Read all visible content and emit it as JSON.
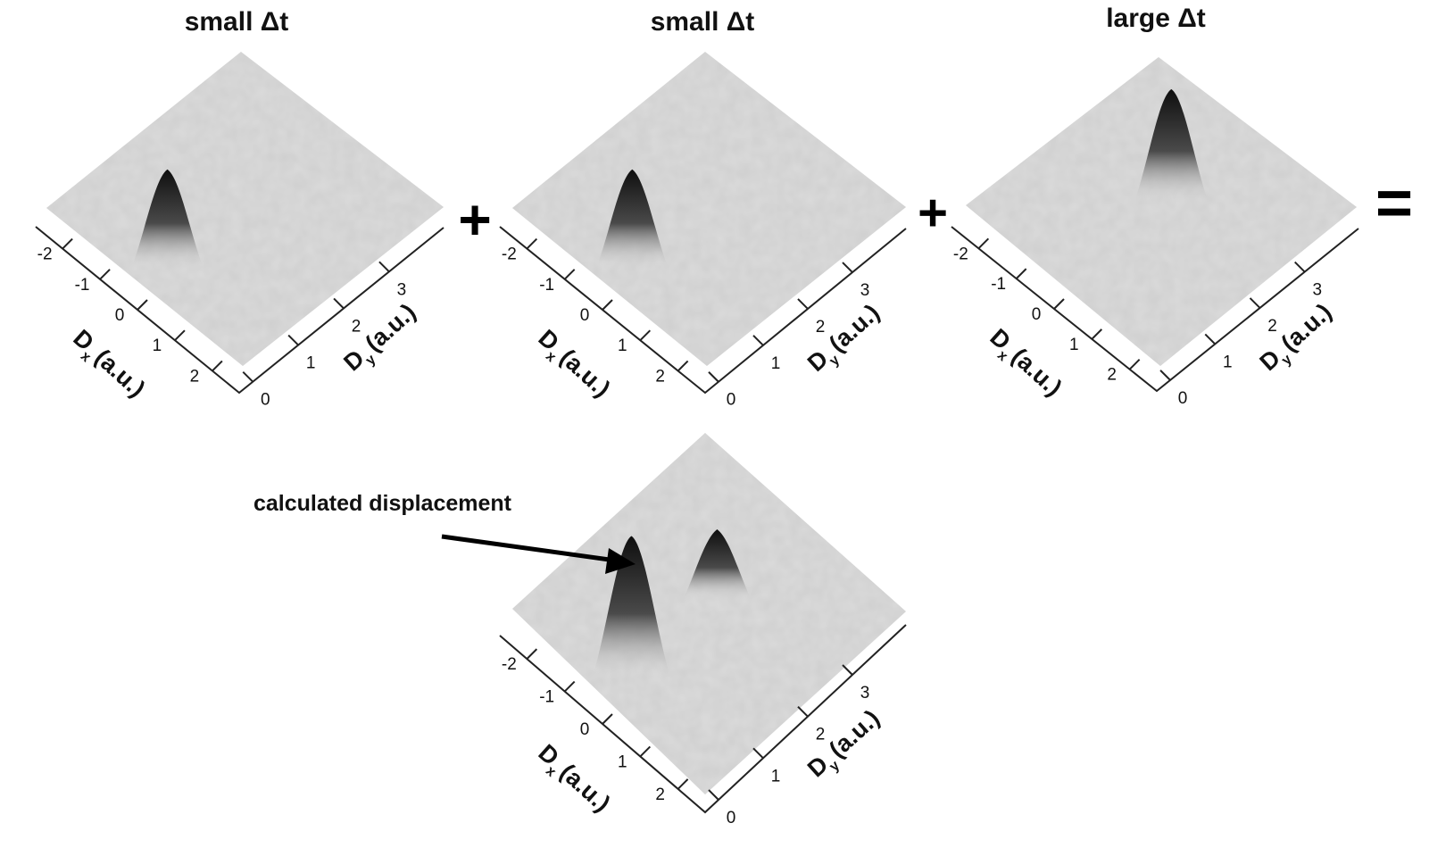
{
  "panels": [
    {
      "title": "small Δt",
      "x_axis": {
        "label": "D",
        "sub": "x",
        "unit": "(a.u.)",
        "ticks": [
          -2,
          -1,
          0,
          1,
          2
        ]
      },
      "y_axis": {
        "label": "D",
        "sub": "y",
        "unit": "(a.u.)",
        "ticks": [
          0,
          1,
          2,
          3
        ]
      },
      "peaks": [
        {
          "x": -0.3,
          "y": 0.3,
          "height": 1.0
        }
      ]
    },
    {
      "title": "small Δt",
      "x_axis": {
        "label": "D",
        "sub": "x",
        "unit": "(a.u.)",
        "ticks": [
          -2,
          -1,
          0,
          1,
          2
        ]
      },
      "y_axis": {
        "label": "D",
        "sub": "y",
        "unit": "(a.u.)",
        "ticks": [
          0,
          1,
          2,
          3
        ]
      },
      "peaks": [
        {
          "x": -0.3,
          "y": 0.3,
          "height": 1.0
        }
      ]
    },
    {
      "title": "large Δt",
      "x_axis": {
        "label": "D",
        "sub": "x",
        "unit": "(a.u.)",
        "ticks": [
          -2,
          -1,
          0,
          1,
          2
        ]
      },
      "y_axis": {
        "label": "D",
        "sub": "y",
        "unit": "(a.u.)",
        "ticks": [
          0,
          1,
          2,
          3
        ]
      },
      "peaks": [
        {
          "x": -0.3,
          "y": 2.3,
          "height": 1.2
        }
      ]
    },
    {
      "title": "",
      "x_axis": {
        "label": "D",
        "sub": "x",
        "unit": "(a.u.)",
        "ticks": [
          -2,
          -1,
          0,
          1,
          2
        ]
      },
      "y_axis": {
        "label": "D",
        "sub": "y",
        "unit": "(a.u.)",
        "ticks": [
          0,
          1,
          2,
          3
        ]
      },
      "peaks": [
        {
          "x": -0.3,
          "y": 0.3,
          "height": 1.6
        },
        {
          "x": -0.3,
          "y": 2.3,
          "height": 0.6
        }
      ],
      "annotation": "calculated displacement"
    }
  ],
  "operators": [
    "+",
    "+",
    "="
  ],
  "chart_data": [
    {
      "type": "surface",
      "title": "small Δt",
      "xlabel": "D x (a.u.)",
      "ylabel": "D y (a.u.)",
      "xlim": [
        -2,
        2
      ],
      "ylim": [
        0,
        3
      ],
      "peaks": [
        {
          "x": -0.3,
          "y": 0.3,
          "height": 1.0
        }
      ]
    },
    {
      "type": "surface",
      "title": "small Δt",
      "xlabel": "D x (a.u.)",
      "ylabel": "D y (a.u.)",
      "xlim": [
        -2,
        2
      ],
      "ylim": [
        0,
        3
      ],
      "peaks": [
        {
          "x": -0.3,
          "y": 0.3,
          "height": 1.0
        }
      ]
    },
    {
      "type": "surface",
      "title": "large Δt",
      "xlabel": "D x (a.u.)",
      "ylabel": "D y (a.u.)",
      "xlim": [
        -2,
        2
      ],
      "ylim": [
        0,
        3
      ],
      "peaks": [
        {
          "x": -0.3,
          "y": 2.3,
          "height": 1.2
        }
      ]
    },
    {
      "type": "surface",
      "title": "",
      "xlabel": "D x (a.u.)",
      "ylabel": "D y (a.u.)",
      "xlim": [
        -2,
        2
      ],
      "ylim": [
        0,
        3
      ],
      "peaks": [
        {
          "x": -0.3,
          "y": 0.3,
          "height": 1.6
        },
        {
          "x": -0.3,
          "y": 2.3,
          "height": 0.6
        }
      ],
      "annotation": "calculated displacement"
    }
  ]
}
